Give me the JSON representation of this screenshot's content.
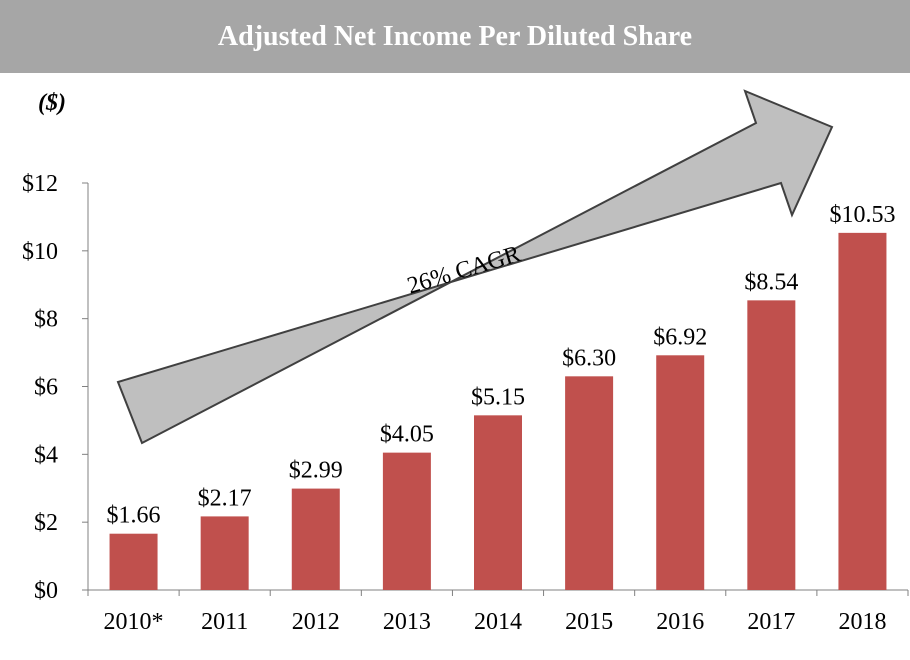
{
  "title": "Adjusted Net Income Per Diluted Share",
  "units_label": "($)",
  "colors": {
    "bar": "#c0504d",
    "title_bg": "#a6a6a6",
    "arrow_fill": "#bfbfbf",
    "arrow_stroke": "#404040"
  },
  "annotation": "26% CAGR",
  "chart_data": {
    "type": "bar",
    "title": "Adjusted Net Income Per Diluted Share",
    "ylabel": "($)",
    "xlabel": "",
    "categories": [
      "2010*",
      "2011",
      "2012",
      "2013",
      "2014",
      "2015",
      "2016",
      "2017",
      "2018"
    ],
    "values": [
      1.66,
      2.17,
      2.99,
      4.05,
      5.15,
      6.3,
      6.92,
      8.54,
      10.53
    ],
    "value_labels": [
      "$1.66",
      "$2.17",
      "$2.99",
      "$4.05",
      "$5.15",
      "$6.30",
      "$6.92",
      "$8.54",
      "$10.53"
    ],
    "ylim": [
      0,
      12
    ],
    "yticks": [
      0,
      2,
      4,
      6,
      8,
      10,
      12
    ],
    "ytick_labels": [
      "$0",
      "$2",
      "$4",
      "$6",
      "$8",
      "$10",
      "$12"
    ],
    "grid": false,
    "annotations": [
      "26% CAGR"
    ]
  }
}
